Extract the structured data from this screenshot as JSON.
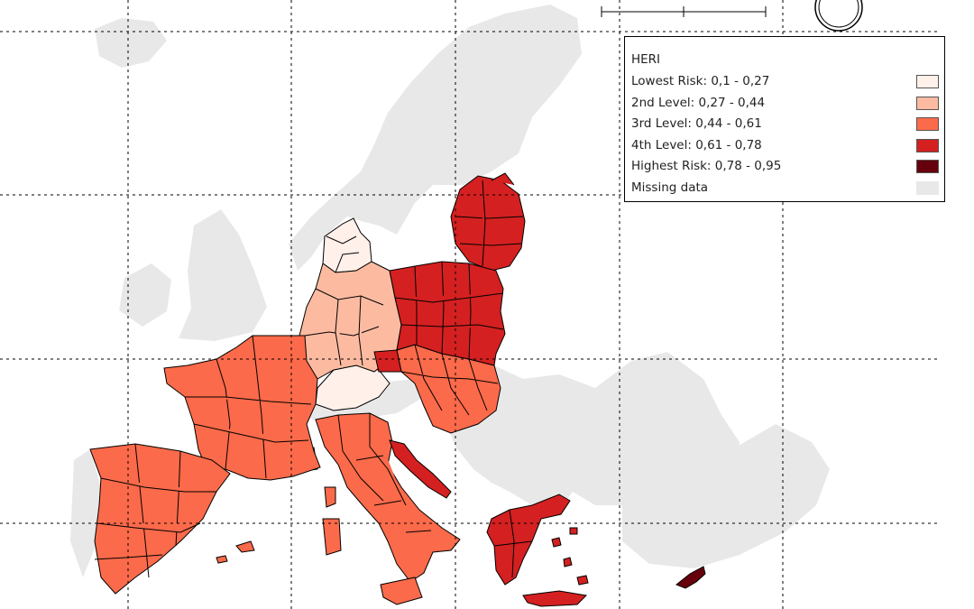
{
  "legend": {
    "title": "HERI",
    "classes": [
      {
        "label": "Lowest Risk: 0,1 - 0,27",
        "color": "#fff0ea"
      },
      {
        "label": "2nd Level: 0,27 - 0,44",
        "color": "#fcbba1"
      },
      {
        "label": "3rd Level: 0,44 - 0,61",
        "color": "#fb6a4a"
      },
      {
        "label": "4th Level: 0,61 - 0,78",
        "color": "#d42020"
      },
      {
        "label": "Highest Risk: 0,78 - 0,95",
        "color": "#67000d"
      },
      {
        "label": "Missing data",
        "color": "#e8e8e8"
      }
    ]
  },
  "colors": {
    "background": "#ffffff",
    "missing": "#e8e8e8",
    "borders": "#000000",
    "graticule": "#000000"
  },
  "map_elements": [
    "scale-bar",
    "north-arrow"
  ]
}
